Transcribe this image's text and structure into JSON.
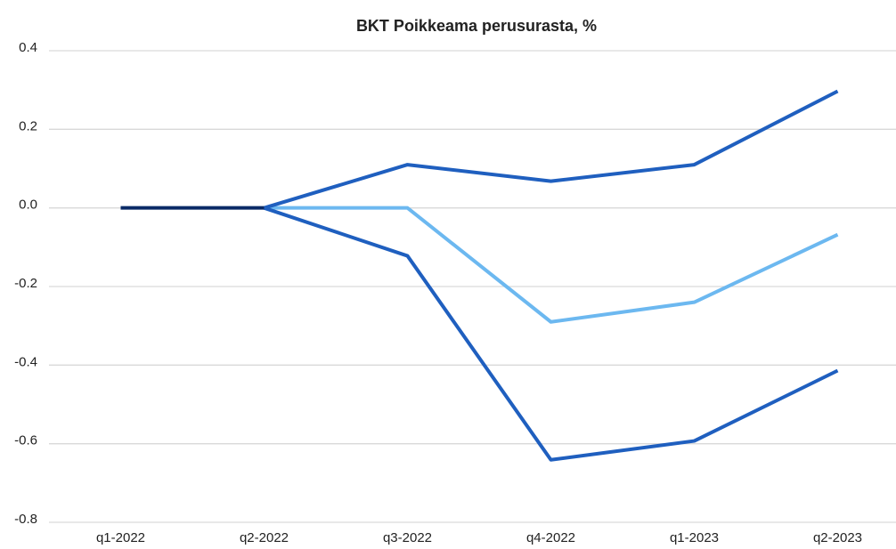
{
  "chart_data": {
    "type": "line",
    "title": "BKT Poikkeama perusurasta, %",
    "categories": [
      "q1-2022",
      "q2-2022",
      "q3-2022",
      "q4-2022",
      "q1-2023",
      "q2-2023"
    ],
    "series": [
      {
        "color": "#6cb8f0",
        "values": [
          null,
          0,
          0,
          -0.29,
          -0.24,
          -0.068
        ]
      },
      {
        "color": "#1f5fbf",
        "values": [
          null,
          0,
          0.11,
          0.068,
          0.11,
          0.297
        ]
      },
      {
        "color": "#1f5fbf",
        "values": [
          null,
          0,
          -0.122,
          -0.641,
          -0.593,
          -0.414
        ]
      },
      {
        "color": "#0a2a66",
        "values": [
          0,
          0,
          null,
          null,
          null,
          null
        ]
      }
    ],
    "ylim": [
      -0.8,
      0.4
    ],
    "yticks": [
      0.4,
      0.2,
      {
        "value": 0,
        "label": "0.0"
      },
      -0.2,
      -0.4,
      -0.6,
      -0.8
    ],
    "grid": true
  }
}
